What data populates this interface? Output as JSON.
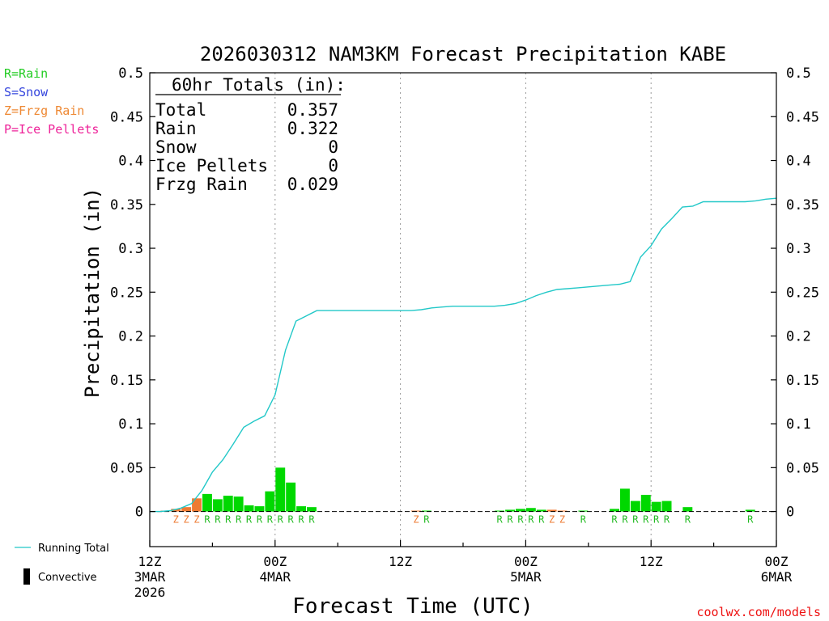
{
  "chart_data": {
    "type": "bar",
    "title": "2026030312 NAM3KM Forecast Precipitation KABE",
    "xlabel": "Forecast Time (UTC)",
    "ylabel": "Precipitation (in)",
    "ylim": [
      -0.04,
      0.5
    ],
    "xlim_hours": [
      0,
      60
    ],
    "y_ticks": [
      "0",
      "0.05",
      "0.1",
      "0.15",
      "0.2",
      "0.25",
      "0.3",
      "0.35",
      "0.4",
      "0.45",
      "0.5"
    ],
    "y_tick_values": [
      0,
      0.05,
      0.1,
      0.15,
      0.2,
      0.25,
      0.3,
      0.35,
      0.4,
      0.45,
      0.5
    ],
    "x_ticks": [
      {
        "hour": 0,
        "lines": [
          "12Z",
          "3MAR",
          "2026"
        ]
      },
      {
        "hour": 12,
        "lines": [
          "00Z",
          "4MAR"
        ]
      },
      {
        "hour": 24,
        "lines": [
          "12Z"
        ]
      },
      {
        "hour": 36,
        "lines": [
          "00Z",
          "5MAR"
        ]
      },
      {
        "hour": 48,
        "lines": [
          "12Z"
        ]
      },
      {
        "hour": 60,
        "lines": [
          "00Z",
          "6MAR"
        ]
      }
    ],
    "legend_types": [
      {
        "text": "R=Rain",
        "color": "#22cc22"
      },
      {
        "text": "S=Snow",
        "color": "#3344dd"
      },
      {
        "text": "Z=Frzg Rain",
        "color": "#ee8833"
      },
      {
        "text": "P=Ice Pellets",
        "color": "#ee2299"
      }
    ],
    "legend_series": [
      {
        "text": "Running Total",
        "kind": "line"
      },
      {
        "text": "Convective",
        "kind": "bar"
      }
    ],
    "totals": {
      "heading": "60hr Totals (in):",
      "rows": [
        {
          "label": "Total",
          "value": "0.357"
        },
        {
          "label": "Rain",
          "value": "0.322"
        },
        {
          "label": "Snow",
          "value": "0"
        },
        {
          "label": "Ice Pellets",
          "value": "0"
        },
        {
          "label": "Frzg Rain",
          "value": "0.029"
        }
      ]
    },
    "series": [
      {
        "name": "Hourly Precipitation",
        "bars": [
          {
            "hour": 2,
            "value": 0.001,
            "type": "Z"
          },
          {
            "hour": 3,
            "value": 0.003,
            "type": "Z"
          },
          {
            "hour": 4,
            "value": 0.005,
            "type": "Z"
          },
          {
            "hour": 5,
            "value": 0.015,
            "type": "Z"
          },
          {
            "hour": 6,
            "value": 0.02,
            "type": "R"
          },
          {
            "hour": 7,
            "value": 0.014,
            "type": "R"
          },
          {
            "hour": 8,
            "value": 0.018,
            "type": "R"
          },
          {
            "hour": 9,
            "value": 0.017,
            "type": "R"
          },
          {
            "hour": 10,
            "value": 0.007,
            "type": "R"
          },
          {
            "hour": 11,
            "value": 0.006,
            "type": "R"
          },
          {
            "hour": 12,
            "value": 0.023,
            "type": "R"
          },
          {
            "hour": 13,
            "value": 0.05,
            "type": "R"
          },
          {
            "hour": 14,
            "value": 0.033,
            "type": "R"
          },
          {
            "hour": 15,
            "value": 0.006,
            "type": "R"
          },
          {
            "hour": 16,
            "value": 0.005,
            "type": "R"
          },
          {
            "hour": 26,
            "value": 0.001,
            "type": "Z"
          },
          {
            "hour": 27,
            "value": 0.001,
            "type": "R"
          },
          {
            "hour": 34,
            "value": 0.001,
            "type": "R"
          },
          {
            "hour": 35,
            "value": 0.002,
            "type": "R"
          },
          {
            "hour": 36,
            "value": 0.003,
            "type": "R"
          },
          {
            "hour": 37,
            "value": 0.004,
            "type": "R"
          },
          {
            "hour": 38,
            "value": 0.002,
            "type": "R"
          },
          {
            "hour": 39,
            "value": 0.002,
            "type": "Z"
          },
          {
            "hour": 40,
            "value": 0.001,
            "type": "Z"
          },
          {
            "hour": 42,
            "value": 0.001,
            "type": "R"
          },
          {
            "hour": 45,
            "value": 0.003,
            "type": "R"
          },
          {
            "hour": 46,
            "value": 0.026,
            "type": "R"
          },
          {
            "hour": 47,
            "value": 0.012,
            "type": "R"
          },
          {
            "hour": 48,
            "value": 0.019,
            "type": "R"
          },
          {
            "hour": 49,
            "value": 0.011,
            "type": "R"
          },
          {
            "hour": 50,
            "value": 0.012,
            "type": "R"
          },
          {
            "hour": 52,
            "value": 0.005,
            "type": "R"
          },
          {
            "hour": 58,
            "value": 0.002,
            "type": "R"
          }
        ],
        "type_labels": [
          {
            "hour": 3,
            "letter": "Z"
          },
          {
            "hour": 4,
            "letter": "Z"
          },
          {
            "hour": 5,
            "letter": "Z"
          },
          {
            "hour": 6,
            "letter": "R"
          },
          {
            "hour": 7,
            "letter": "R"
          },
          {
            "hour": 8,
            "letter": "R"
          },
          {
            "hour": 9,
            "letter": "R"
          },
          {
            "hour": 10,
            "letter": "R"
          },
          {
            "hour": 11,
            "letter": "R"
          },
          {
            "hour": 12,
            "letter": "R"
          },
          {
            "hour": 13,
            "letter": "R"
          },
          {
            "hour": 14,
            "letter": "R"
          },
          {
            "hour": 15,
            "letter": "R"
          },
          {
            "hour": 16,
            "letter": "R"
          },
          {
            "hour": 26,
            "letter": "Z"
          },
          {
            "hour": 27,
            "letter": "R"
          },
          {
            "hour": 34,
            "letter": "R"
          },
          {
            "hour": 35,
            "letter": "R"
          },
          {
            "hour": 36,
            "letter": "R"
          },
          {
            "hour": 37,
            "letter": "R"
          },
          {
            "hour": 38,
            "letter": "R"
          },
          {
            "hour": 39,
            "letter": "Z"
          },
          {
            "hour": 40,
            "letter": "Z"
          },
          {
            "hour": 42,
            "letter": "R"
          },
          {
            "hour": 45,
            "letter": "R"
          },
          {
            "hour": 46,
            "letter": "R"
          },
          {
            "hour": 47,
            "letter": "R"
          },
          {
            "hour": 48,
            "letter": "R"
          },
          {
            "hour": 49,
            "letter": "R"
          },
          {
            "hour": 50,
            "letter": "R"
          },
          {
            "hour": 52,
            "letter": "R"
          },
          {
            "hour": 58,
            "letter": "R"
          }
        ]
      },
      {
        "name": "Running Total",
        "x": [
          0,
          1,
          2,
          3,
          4,
          5,
          6,
          7,
          8,
          9,
          10,
          11,
          12,
          13,
          14,
          15,
          16,
          17,
          18,
          19,
          20,
          21,
          22,
          23,
          24,
          25,
          26,
          27,
          28,
          29,
          30,
          31,
          32,
          33,
          34,
          35,
          36,
          37,
          38,
          39,
          40,
          41,
          42,
          43,
          44,
          45,
          46,
          47,
          48,
          49,
          50,
          51,
          52,
          53,
          54,
          55,
          56,
          57,
          58,
          59,
          60
        ],
        "values": [
          0,
          0,
          0.001,
          0.004,
          0.009,
          0.024,
          0.045,
          0.059,
          0.077,
          0.096,
          0.103,
          0.109,
          0.133,
          0.184,
          0.217,
          0.223,
          0.229,
          0.229,
          0.229,
          0.229,
          0.229,
          0.229,
          0.229,
          0.229,
          0.229,
          0.229,
          0.23,
          0.232,
          0.233,
          0.234,
          0.234,
          0.234,
          0.234,
          0.234,
          0.235,
          0.237,
          0.241,
          0.246,
          0.25,
          0.253,
          0.254,
          0.255,
          0.256,
          0.257,
          0.258,
          0.259,
          0.262,
          0.29,
          0.303,
          0.322,
          0.334,
          0.347,
          0.348,
          0.353,
          0.353,
          0.353,
          0.353,
          0.353,
          0.354,
          0.356,
          0.357
        ],
        "color": "#22c8c8"
      }
    ]
  },
  "footer": {
    "credit": "coolwx.com/models"
  },
  "colors": {
    "rain": "#00d800",
    "frzg": "#ee7a32",
    "line": "#22c8c8"
  }
}
